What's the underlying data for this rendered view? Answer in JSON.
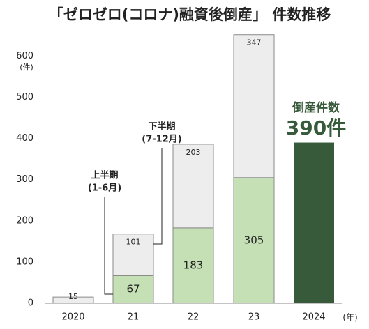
{
  "chart_data": {
    "type": "stacked_bar",
    "title": "「ゼロゼロ(コロナ)融資後倒産」 件数推移",
    "y_unit": "(件)",
    "x_unit": "(年)",
    "categories": [
      "2020",
      "21",
      "22",
      "23",
      "2024"
    ],
    "series": [
      {
        "name": "上半期",
        "sub": "(1-6月)",
        "color": "#c5e0b4",
        "values": [
          null,
          67,
          183,
          305,
          null
        ]
      },
      {
        "name": "下半期",
        "sub": "(7-12月)",
        "color": "#ededed",
        "values": [
          15,
          101,
          203,
          347,
          null
        ]
      },
      {
        "name": "倒産件数",
        "color": "#375a3a",
        "values": [
          null,
          null,
          null,
          null,
          390
        ],
        "value_labels": [
          null,
          null,
          null,
          null,
          "390件"
        ]
      }
    ],
    "ylim": [
      0,
      660
    ],
    "yticks": [
      0,
      100,
      200,
      300,
      400,
      500,
      600
    ]
  }
}
